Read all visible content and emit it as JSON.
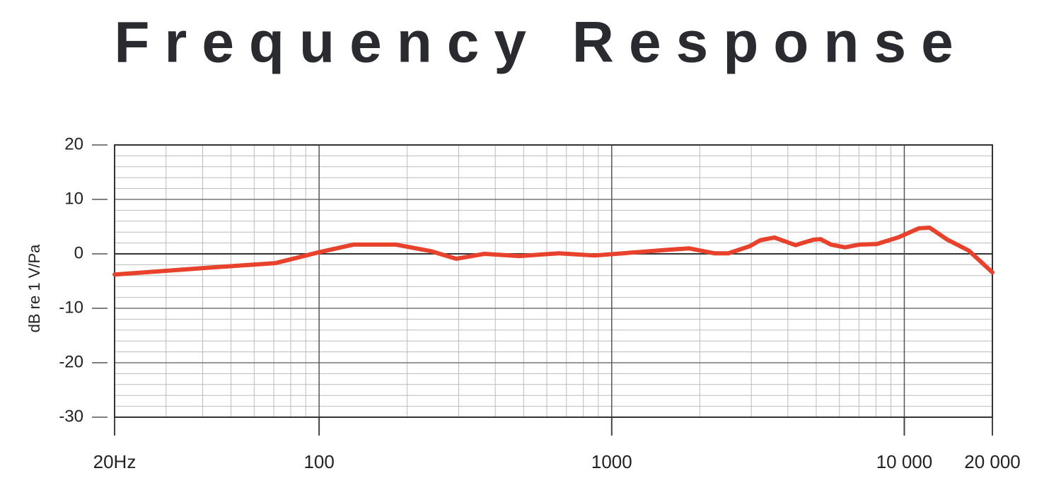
{
  "chart_data": {
    "type": "line",
    "title": "Frequency Response",
    "ylabel": "dB re 1 V/Pa",
    "x": [
      20,
      43,
      71,
      100,
      131,
      183,
      241,
      294,
      367,
      484,
      660,
      874,
      1216,
      1601,
      1842,
      2241,
      2504,
      2960,
      3219,
      3597,
      4250,
      4887,
      5170,
      5618,
      6272,
      7008,
      8050,
      9512,
      11240,
      12210,
      14040,
      16600,
      20000
    ],
    "series": [
      {
        "name": "Frequency Response",
        "color": "#e8412c",
        "values": [
          -3.8,
          -2.5,
          -1.7,
          0.3,
          1.7,
          1.7,
          0.5,
          -0.9,
          0,
          -0.4,
          0.1,
          -0.3,
          0.3,
          0.8,
          1.0,
          0.1,
          0.1,
          1.4,
          2.5,
          3.0,
          1.6,
          2.6,
          2.7,
          1.7,
          1.2,
          1.7,
          1.8,
          3.0,
          4.7,
          4.8,
          2.6,
          0.6,
          -3.4
        ]
      }
    ],
    "xscale": "log",
    "xlim": [
      20,
      20000
    ],
    "xticks": [
      {
        "value": 20,
        "label": "20Hz"
      },
      100,
      1000,
      {
        "value": 10000,
        "label": "10 000"
      },
      {
        "value": 20000,
        "label": "20 000"
      }
    ],
    "x_minor_grid": [
      30,
      40,
      50,
      60,
      70,
      80,
      90,
      200,
      300,
      400,
      500,
      600,
      700,
      800,
      900,
      2000,
      3000,
      4000,
      5000,
      6000,
      7000,
      8000,
      9000
    ],
    "ylim": [
      -30,
      20
    ],
    "yticks": [
      -30,
      -20,
      -10,
      0,
      10,
      20
    ],
    "y_minor_grid": [
      -28,
      -26,
      -24,
      -22,
      -18,
      -16,
      -14,
      -12,
      -8,
      -6,
      -4,
      -2,
      2,
      4,
      6,
      8,
      12,
      14,
      16,
      18
    ],
    "grid": true
  }
}
